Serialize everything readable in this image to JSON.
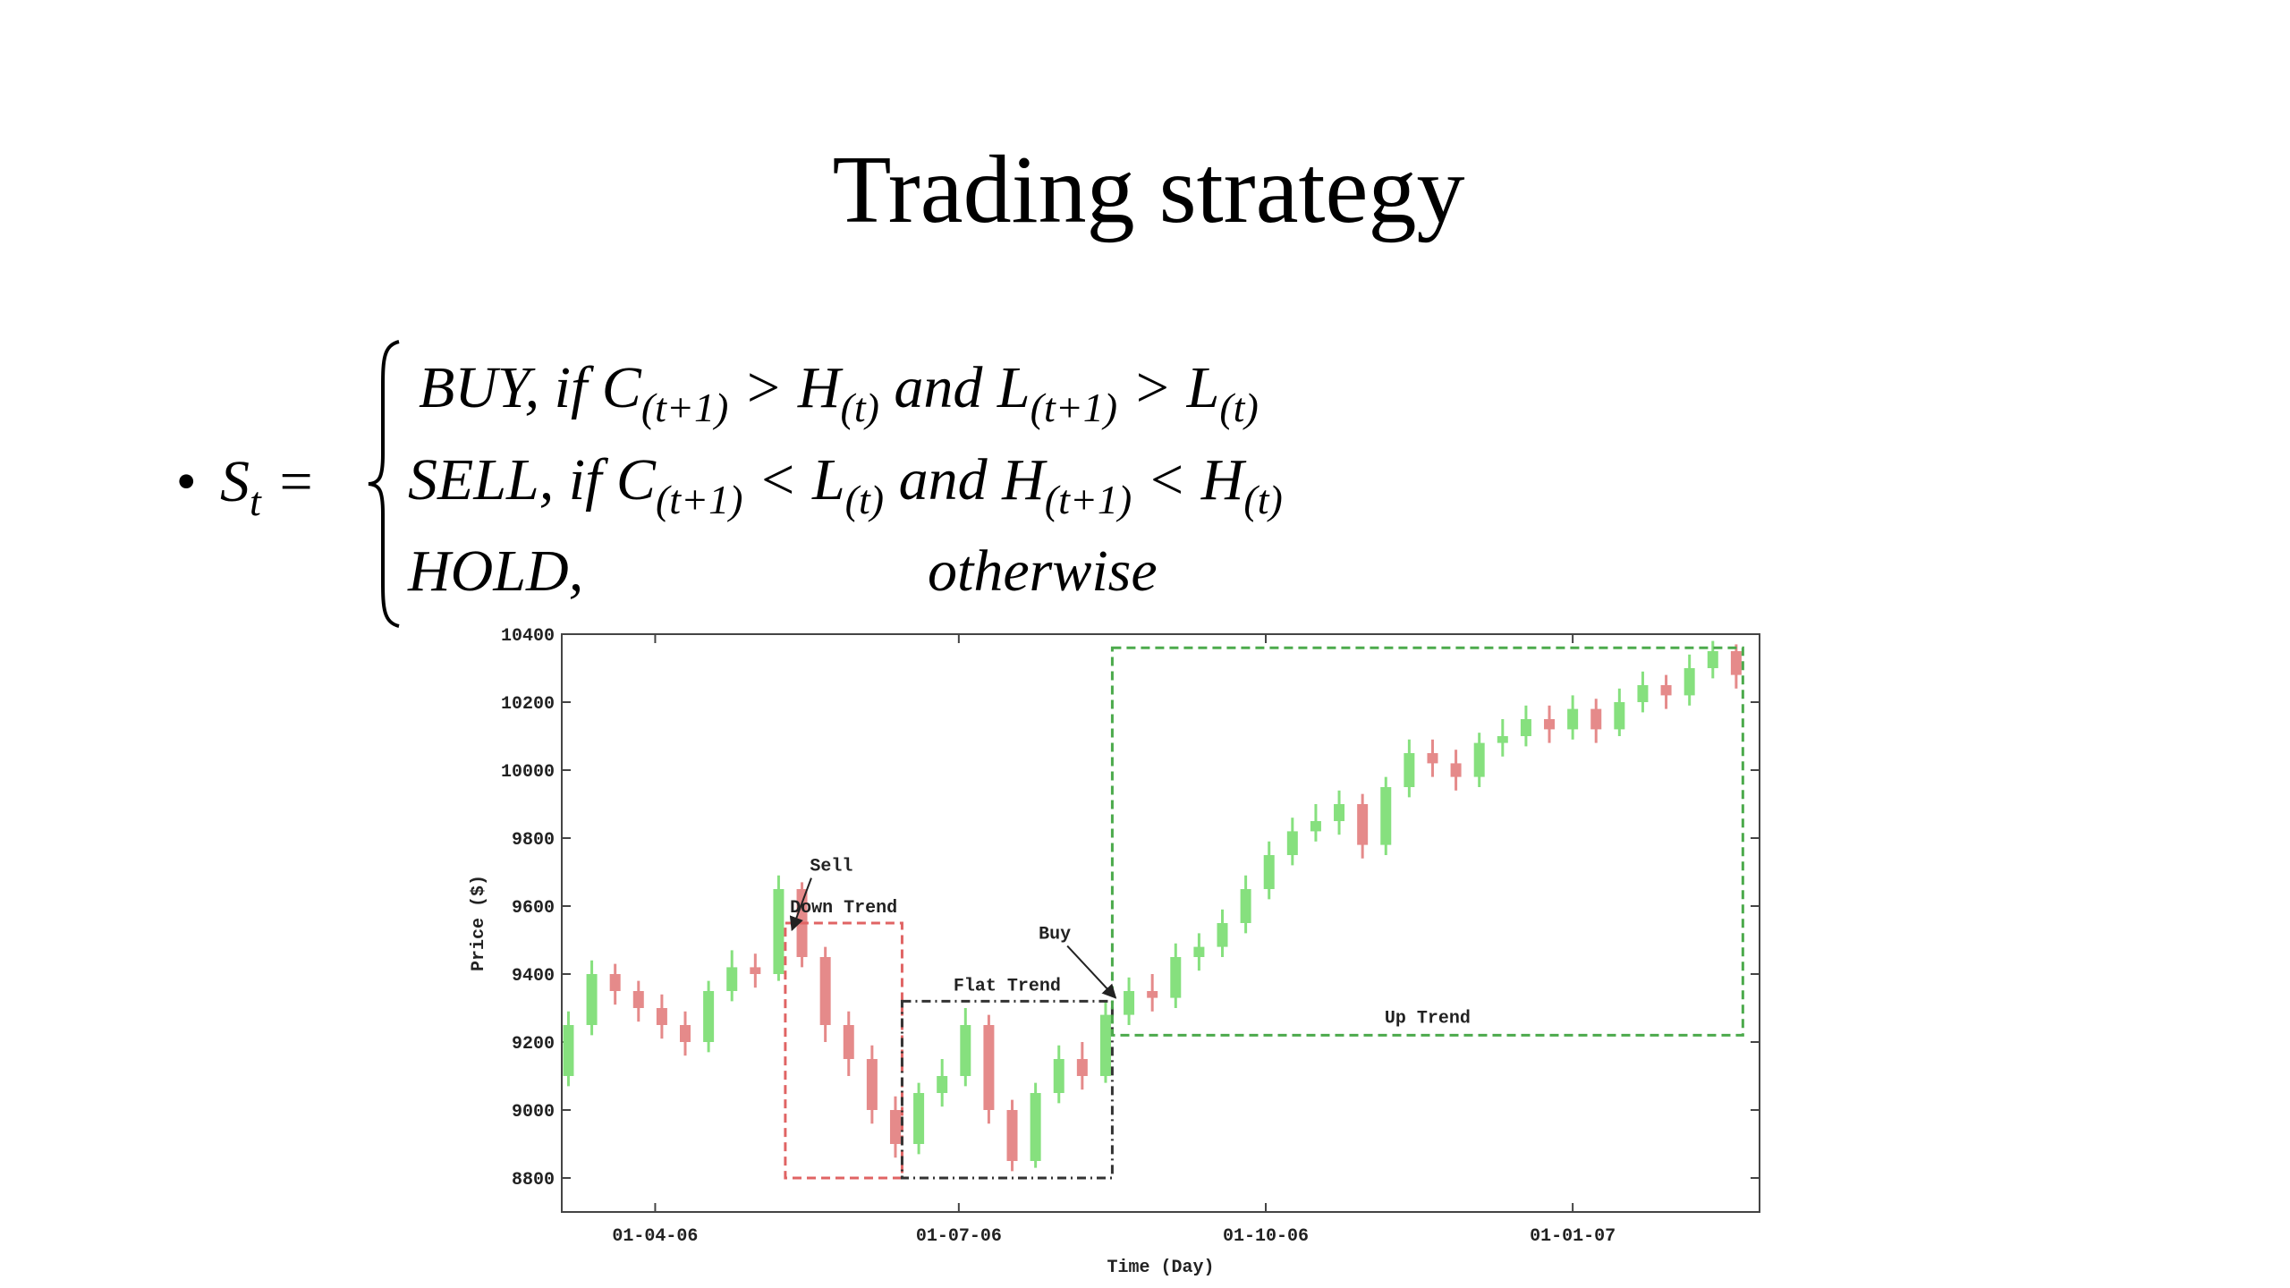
{
  "slide": {
    "title": "Trading strategy",
    "bullet": "•",
    "lhs": [
      {
        "text": "S"
      },
      {
        "sub": "t"
      },
      {
        "text": " ="
      }
    ],
    "rows": [
      [
        {
          "text": "BUY,  if C"
        },
        {
          "sub": "(t+1)"
        },
        {
          "text": " > H"
        },
        {
          "sub": "(t)"
        },
        {
          "text": " and L"
        },
        {
          "sub": "(t+1)"
        },
        {
          "text": " > L"
        },
        {
          "sub": "(t)"
        }
      ],
      [
        {
          "text": "SELL, if C"
        },
        {
          "sub": "(t+1)"
        },
        {
          "text": " < L"
        },
        {
          "sub": "(t)"
        },
        {
          "text": " and H"
        },
        {
          "sub": "(t+1)"
        },
        {
          "text": " < H"
        },
        {
          "sub": "(t)"
        }
      ],
      [
        {
          "text": "HOLD,"
        },
        {
          "text": "otherwise"
        }
      ]
    ]
  },
  "chart_data": {
    "type": "candlestick",
    "x_label": "Time (Day)",
    "y_label": "Price ($)",
    "x": [
      "2006-03-06",
      "2006-03-13",
      "2006-03-20",
      "2006-03-27",
      "2006-04-03",
      "2006-04-10",
      "2006-04-17",
      "2006-04-24",
      "2006-05-01",
      "2006-05-08",
      "2006-05-15",
      "2006-05-22",
      "2006-05-29",
      "2006-06-05",
      "2006-06-12",
      "2006-06-19",
      "2006-06-26",
      "2006-07-03",
      "2006-07-10",
      "2006-07-17",
      "2006-07-24",
      "2006-07-31",
      "2006-08-07",
      "2006-08-14",
      "2006-08-21",
      "2006-08-28",
      "2006-09-04",
      "2006-09-11",
      "2006-09-18",
      "2006-09-25",
      "2006-10-02",
      "2006-10-09",
      "2006-10-16",
      "2006-10-23",
      "2006-10-30",
      "2006-11-06",
      "2006-11-13",
      "2006-11-20",
      "2006-11-27",
      "2006-12-04",
      "2006-12-11",
      "2006-12-18",
      "2006-12-25",
      "2007-01-01",
      "2007-01-08",
      "2007-01-15",
      "2007-01-22",
      "2007-01-29",
      "2007-02-05",
      "2007-02-12",
      "2007-02-19"
    ],
    "open": [
      9100,
      9250,
      9400,
      9350,
      9300,
      9250,
      9200,
      9350,
      9420,
      9400,
      9650,
      9450,
      9250,
      9150,
      9000,
      8900,
      9050,
      9100,
      9250,
      9000,
      8850,
      9050,
      9150,
      9100,
      9280,
      9350,
      9330,
      9450,
      9480,
      9550,
      9650,
      9750,
      9820,
      9850,
      9900,
      9780,
      9950,
      10050,
      10020,
      9980,
      10080,
      10100,
      10150,
      10120,
      10180,
      10120,
      10200,
      10250,
      10220,
      10300,
      10350
    ],
    "high": [
      9290,
      9440,
      9430,
      9380,
      9340,
      9290,
      9380,
      9470,
      9460,
      9690,
      9670,
      9480,
      9290,
      9190,
      9040,
      9080,
      9150,
      9300,
      9280,
      9030,
      9080,
      9190,
      9200,
      9320,
      9390,
      9400,
      9490,
      9520,
      9590,
      9690,
      9790,
      9860,
      9900,
      9940,
      9930,
      9980,
      10090,
      10090,
      10060,
      10110,
      10150,
      10190,
      10190,
      10220,
      10210,
      10240,
      10290,
      10280,
      10340,
      10380,
      10370
    ],
    "low": [
      9070,
      9220,
      9310,
      9260,
      9210,
      9160,
      9170,
      9320,
      9360,
      9380,
      9420,
      9200,
      9100,
      8960,
      8860,
      8870,
      9010,
      9070,
      8960,
      8820,
      8830,
      9020,
      9060,
      9080,
      9250,
      9290,
      9300,
      9410,
      9450,
      9520,
      9620,
      9720,
      9790,
      9810,
      9740,
      9750,
      9920,
      9980,
      9940,
      9950,
      10040,
      10070,
      10080,
      10090,
      10080,
      10100,
      10170,
      10180,
      10190,
      10270,
      10240
    ],
    "close": [
      9250,
      9400,
      9350,
      9300,
      9250,
      9200,
      9350,
      9420,
      9400,
      9650,
      9450,
      9250,
      9150,
      9000,
      8900,
      9050,
      9100,
      9250,
      9000,
      8850,
      9050,
      9150,
      9100,
      9280,
      9350,
      9330,
      9450,
      9480,
      9550,
      9650,
      9750,
      9820,
      9850,
      9900,
      9780,
      9950,
      10050,
      10020,
      9980,
      10080,
      10100,
      10150,
      10120,
      10180,
      10120,
      10200,
      10250,
      10220,
      10300,
      10350,
      10280
    ],
    "up_color": "#86e07e",
    "down_color": "#e58a8a",
    "xlim": [
      "2006-03-04",
      "2007-02-26"
    ],
    "xticks": [
      {
        "value": "2006-04-01",
        "label": "01-04-06"
      },
      {
        "value": "2006-07-01",
        "label": "01-07-06"
      },
      {
        "value": "2006-10-01",
        "label": "01-10-06"
      },
      {
        "value": "2007-01-01",
        "label": "01-01-07"
      }
    ],
    "ylim": [
      8700,
      10400
    ],
    "yticks": [
      8800,
      9000,
      9200,
      9400,
      9600,
      9800,
      10000,
      10200,
      10400
    ],
    "grid": false,
    "regions": [
      {
        "label": "Down Trend",
        "x": [
          "2006-05-10",
          "2006-06-14"
        ],
        "y": [
          8800,
          9550
        ],
        "color": "#e06464",
        "dash": "dashed",
        "label_position": "above"
      },
      {
        "label": "Flat Trend",
        "x": [
          "2006-06-14",
          "2006-08-16"
        ],
        "y": [
          8800,
          9320
        ],
        "color": "#333333",
        "dash": "dashdot",
        "label_position": "above"
      },
      {
        "label": "Up Trend",
        "x": [
          "2006-08-16",
          "2007-02-21"
        ],
        "y": [
          9220,
          10360
        ],
        "color": "#4caa4c",
        "dash": "dashed",
        "label_position": "inside-bottom"
      }
    ],
    "annotations": [
      {
        "text": "Sell",
        "x": "2006-05-12",
        "y": 9530,
        "side": "upper-right"
      },
      {
        "text": "Buy",
        "x": "2006-08-17",
        "y": 9330,
        "side": "upper-left"
      }
    ]
  }
}
